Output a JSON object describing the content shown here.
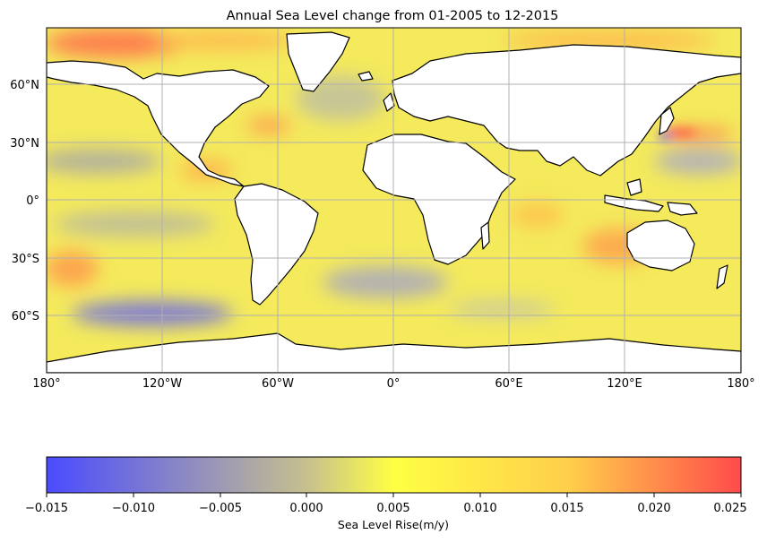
{
  "title": "Annual Sea Level change from 01-2005 to 12-2015",
  "map": {
    "lat_ticks": [
      "60°N",
      "30°N",
      "0°",
      "30°S",
      "60°S"
    ],
    "lon_ticks": [
      "180°",
      "120°W",
      "60°W",
      "0°",
      "60°E",
      "120°E",
      "180°"
    ],
    "gridlines": true,
    "projection": "PlateCarree"
  },
  "colorbar": {
    "label": "Sea Level Rise(m/y)",
    "ticks": [
      "−0.015",
      "−0.010",
      "−0.005",
      "0.000",
      "0.005",
      "0.010",
      "0.015",
      "0.020",
      "0.025"
    ],
    "range": [
      -0.015,
      0.025
    ],
    "colors": [
      "#4b4bff",
      "#ffff44",
      "#ff4b4b"
    ]
  },
  "colors": {
    "ocean_base": "#f4ea5c",
    "land": "#ffffff",
    "coast": "#000000",
    "grid": "#b0b0b0"
  }
}
